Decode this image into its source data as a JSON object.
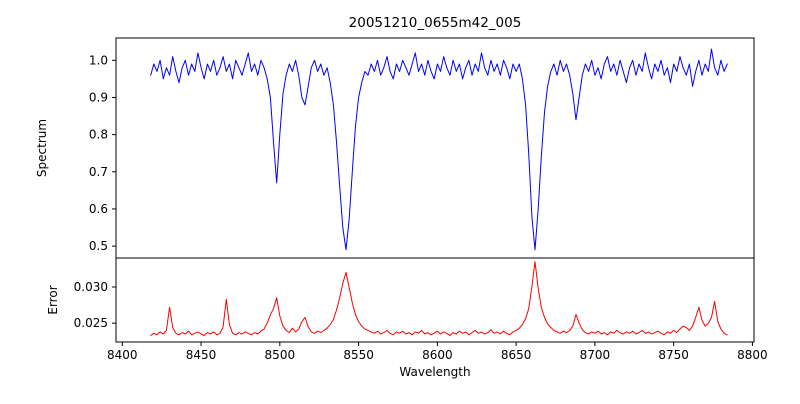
{
  "figure": {
    "title": "20051210_0655m42_005",
    "xlabel": "Wavelength",
    "background": "#ffffff"
  },
  "chart_data": {
    "type": "line",
    "title": "20051210_0655m42_005",
    "xlabel": "Wavelength",
    "grid": false,
    "legend": null,
    "x": {
      "start": 8418,
      "step": 2,
      "end": 8784
    },
    "xlim": [
      8396,
      8801
    ],
    "xticks": {
      "values": [
        8400,
        8450,
        8500,
        8550,
        8600,
        8650,
        8700,
        8750,
        8800
      ],
      "labels": [
        "8400",
        "8450",
        "8500",
        "8550",
        "8600",
        "8650",
        "8700",
        "8750",
        "8800"
      ]
    },
    "subplots": [
      {
        "name": "spectrum",
        "ylabel": "Spectrum",
        "color": "#0000ff",
        "ylim": [
          0.468,
          1.06
        ],
        "yticks": {
          "values": [
            0.5,
            0.6,
            0.7,
            0.8,
            0.9,
            1.0
          ],
          "labels": [
            "0.5",
            "0.6",
            "0.7",
            "0.8",
            "0.9",
            "1.0"
          ]
        },
        "features": "absorption lines near 8498, 8542, 8662 (Ca II triplet), smaller dips near 8516 and 8688",
        "values": [
          0.96,
          0.99,
          0.97,
          1.0,
          0.95,
          0.98,
          0.96,
          1.01,
          0.97,
          0.94,
          0.98,
          1.0,
          0.96,
          0.99,
          0.97,
          1.02,
          0.98,
          0.95,
          0.99,
          0.97,
          1.0,
          0.96,
          0.98,
          1.01,
          0.97,
          0.99,
          0.95,
          1.0,
          0.98,
          0.96,
          0.99,
          1.02,
          0.97,
          0.99,
          0.96,
          1.0,
          0.98,
          0.95,
          0.9,
          0.78,
          0.67,
          0.8,
          0.91,
          0.96,
          0.99,
          0.97,
          1.0,
          0.96,
          0.9,
          0.88,
          0.93,
          0.98,
          1.0,
          0.97,
          0.99,
          0.96,
          0.98,
          0.94,
          0.88,
          0.78,
          0.66,
          0.55,
          0.49,
          0.57,
          0.7,
          0.82,
          0.9,
          0.94,
          0.97,
          0.96,
          0.99,
          0.97,
          1.0,
          0.96,
          0.98,
          1.01,
          0.97,
          0.95,
          0.99,
          0.97,
          1.0,
          0.98,
          0.96,
          0.99,
          1.02,
          0.97,
          0.99,
          0.96,
          1.0,
          0.97,
          0.95,
          0.99,
          0.97,
          1.01,
          0.98,
          0.96,
          1.0,
          0.97,
          0.99,
          0.95,
          0.98,
          1.0,
          0.96,
          0.99,
          0.97,
          1.02,
          0.98,
          0.96,
          1.0,
          0.97,
          0.99,
          0.96,
          1.0,
          0.98,
          0.95,
          0.99,
          0.97,
          0.99,
          0.95,
          0.88,
          0.75,
          0.58,
          0.49,
          0.6,
          0.74,
          0.86,
          0.93,
          0.97,
          0.99,
          0.96,
          1.0,
          0.97,
          0.99,
          0.96,
          0.91,
          0.84,
          0.9,
          0.96,
          0.99,
          0.97,
          1.0,
          0.96,
          0.98,
          0.95,
          0.99,
          1.01,
          0.97,
          0.99,
          0.96,
          1.0,
          0.97,
          0.94,
          0.98,
          1.0,
          0.96,
          0.99,
          0.97,
          1.02,
          0.98,
          0.95,
          0.99,
          0.97,
          1.0,
          0.96,
          0.98,
          0.94,
          0.99,
          0.97,
          1.01,
          0.98,
          0.96,
          0.99,
          0.93,
          0.97,
          1.0,
          0.96,
          0.99,
          0.97,
          1.03,
          0.98,
          0.96,
          1.0,
          0.97,
          0.99
        ]
      },
      {
        "name": "error",
        "ylabel": "Error",
        "color": "#ff0000",
        "ylim": [
          0.0224,
          0.034
        ],
        "yticks": {
          "values": [
            0.025,
            0.03
          ],
          "labels": [
            "0.025",
            "0.030"
          ]
        },
        "features": "error peaks coincident with absorption lines, max ~0.0335 near 8662",
        "values": [
          0.0233,
          0.0236,
          0.0234,
          0.0238,
          0.0235,
          0.024,
          0.0272,
          0.0244,
          0.0236,
          0.0234,
          0.0237,
          0.0235,
          0.0239,
          0.0234,
          0.0236,
          0.0238,
          0.0235,
          0.0233,
          0.0237,
          0.0235,
          0.0238,
          0.0234,
          0.0236,
          0.0245,
          0.0283,
          0.0248,
          0.0236,
          0.0234,
          0.0237,
          0.0235,
          0.0238,
          0.0236,
          0.0234,
          0.0237,
          0.0235,
          0.0239,
          0.0242,
          0.025,
          0.0262,
          0.027,
          0.0285,
          0.026,
          0.0246,
          0.024,
          0.0237,
          0.0243,
          0.0238,
          0.0242,
          0.0252,
          0.0258,
          0.0245,
          0.0238,
          0.0236,
          0.0239,
          0.0237,
          0.024,
          0.0243,
          0.0248,
          0.0255,
          0.0268,
          0.0285,
          0.0305,
          0.032,
          0.03,
          0.0278,
          0.0262,
          0.0252,
          0.0246,
          0.0242,
          0.024,
          0.0238,
          0.0236,
          0.0239,
          0.0235,
          0.0237,
          0.024,
          0.0236,
          0.0234,
          0.0238,
          0.0236,
          0.0239,
          0.0235,
          0.0237,
          0.0234,
          0.0238,
          0.0236,
          0.024,
          0.0235,
          0.0237,
          0.0234,
          0.0236,
          0.0239,
          0.0235,
          0.0238,
          0.0236,
          0.0233,
          0.0237,
          0.0235,
          0.0239,
          0.0236,
          0.0238,
          0.0234,
          0.0237,
          0.024,
          0.0236,
          0.0238,
          0.0235,
          0.0237,
          0.0241,
          0.0236,
          0.0238,
          0.0235,
          0.0239,
          0.0236,
          0.0234,
          0.0238,
          0.024,
          0.0243,
          0.0248,
          0.0256,
          0.027,
          0.03,
          0.0335,
          0.0298,
          0.0272,
          0.0258,
          0.0249,
          0.0244,
          0.024,
          0.0238,
          0.0236,
          0.0239,
          0.0237,
          0.024,
          0.0246,
          0.0262,
          0.025,
          0.0241,
          0.0237,
          0.0235,
          0.0238,
          0.0236,
          0.0239,
          0.0235,
          0.0237,
          0.0234,
          0.0238,
          0.0236,
          0.024,
          0.0237,
          0.0235,
          0.0238,
          0.0236,
          0.0239,
          0.0235,
          0.0237,
          0.024,
          0.0236,
          0.0238,
          0.0235,
          0.0237,
          0.0239,
          0.0236,
          0.0234,
          0.0238,
          0.0236,
          0.024,
          0.0237,
          0.0242,
          0.0246,
          0.0244,
          0.024,
          0.0246,
          0.0258,
          0.0272,
          0.0254,
          0.0246,
          0.025,
          0.0258,
          0.028,
          0.0252,
          0.0242,
          0.0236,
          0.0234
        ]
      }
    ]
  }
}
